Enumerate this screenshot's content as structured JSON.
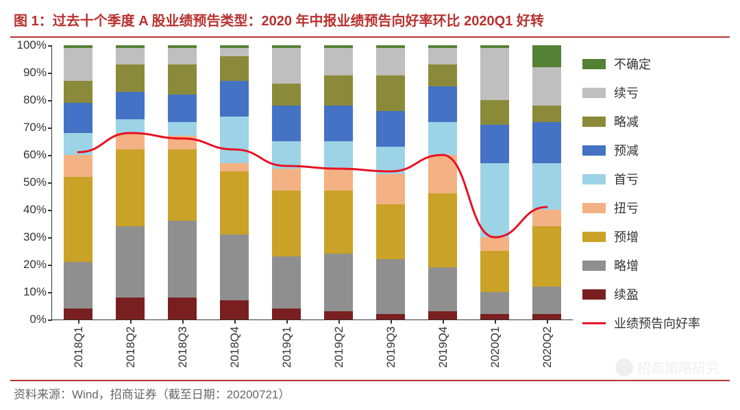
{
  "title": "图 1：过去十个季度 A 股业绩预告类型：2020 年中报业绩预告向好率环比 2020Q1 好转",
  "source": "资料来源：Wind，招商证券（截至日期：20200721）",
  "watermark": "招商策略研究",
  "chart": {
    "type": "stacked-bar-with-line",
    "categories": [
      "2018Q1",
      "2018Q2",
      "2018Q3",
      "2018Q4",
      "2019Q1",
      "2019Q2",
      "2019Q3",
      "2019Q4",
      "2020Q1",
      "2020Q2"
    ],
    "y_axis": {
      "min": 0,
      "max": 100,
      "step": 10,
      "suffix": "%"
    },
    "series_order_bottom_to_top": [
      "续盈",
      "略增",
      "预增",
      "扭亏",
      "首亏",
      "预减",
      "略减",
      "续亏",
      "不确定"
    ],
    "colors": {
      "续盈": "#7a1f1f",
      "略增": "#8f8f8f",
      "预增": "#c9a227",
      "扭亏": "#f4b183",
      "首亏": "#9dd3e6",
      "预减": "#4472c4",
      "略减": "#8a8a3a",
      "续亏": "#bfbfbf",
      "不确定": "#548235"
    },
    "data": {
      "续盈": [
        4,
        8,
        8,
        7,
        4,
        3,
        2,
        3,
        2,
        2
      ],
      "略增": [
        17,
        26,
        28,
        24,
        19,
        21,
        20,
        16,
        8,
        10
      ],
      "预增": [
        31,
        28,
        26,
        23,
        24,
        23,
        20,
        27,
        15,
        22
      ],
      "扭亏": [
        8,
        6,
        5,
        3,
        8,
        8,
        11,
        14,
        5,
        6
      ],
      "首亏": [
        8,
        5,
        5,
        17,
        10,
        10,
        10,
        12,
        27,
        17
      ],
      "预减": [
        11,
        10,
        10,
        13,
        13,
        13,
        13,
        13,
        14,
        15
      ],
      "略减": [
        8,
        10,
        11,
        9,
        8,
        11,
        13,
        8,
        9,
        6
      ],
      "续亏": [
        12,
        6,
        6,
        3,
        13,
        10,
        10,
        6,
        19,
        14
      ],
      "不确定": [
        1,
        1,
        1,
        1,
        1,
        1,
        1,
        1,
        1,
        8
      ]
    },
    "line": {
      "label": "业绩预告向好率",
      "color": "#e81123",
      "width": 3,
      "values": [
        61,
        68,
        66,
        62,
        56,
        55,
        54,
        60,
        30,
        41
      ]
    },
    "bar_width_ratio": 0.56,
    "plot_bg": "#ffffff",
    "axis_color": "#333333",
    "label_fontsize": 17,
    "legend_fontsize": 18
  }
}
